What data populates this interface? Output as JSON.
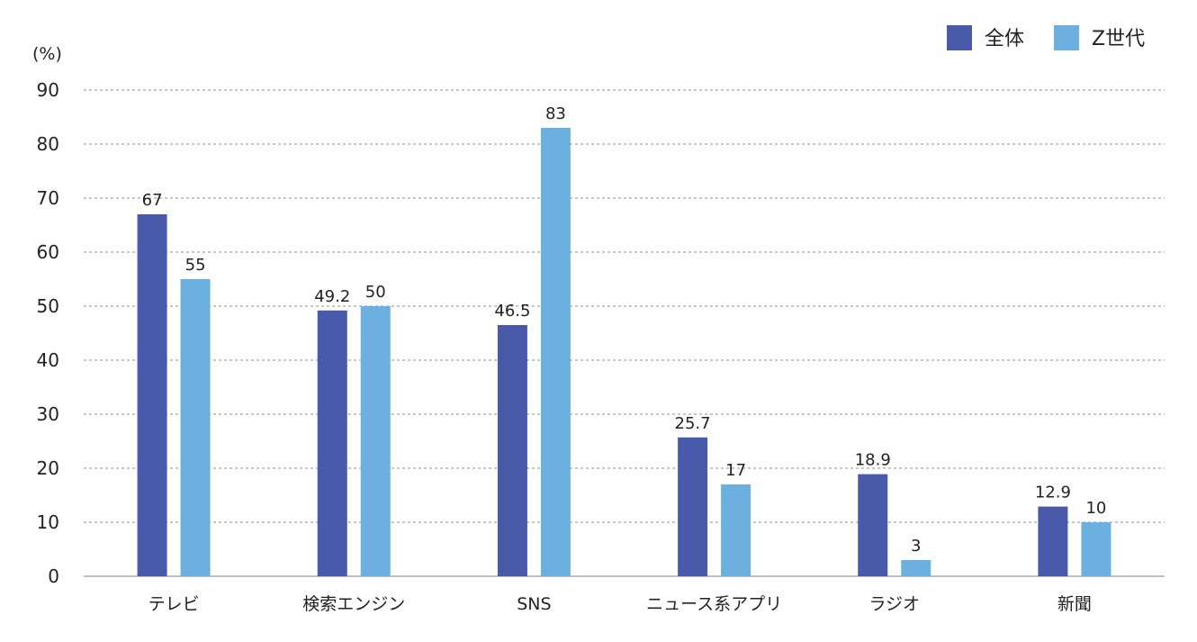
{
  "chart_data": {
    "type": "bar",
    "unit_label": "(%)",
    "categories": [
      "テレビ",
      "検索エンジン",
      "SNS",
      "ニュース系アプリ",
      "ラジオ",
      "新聞"
    ],
    "series": [
      {
        "name": "全体",
        "color": "#4a5aab",
        "values": [
          67,
          49.2,
          46.5,
          25.7,
          18.9,
          12.9
        ],
        "labels": [
          "67",
          "49.2",
          "46.5",
          "25.7",
          "18.9",
          "12.9"
        ]
      },
      {
        "name": "Z世代",
        "color": "#6cb0e0",
        "values": [
          55,
          50,
          83,
          17,
          3,
          10
        ],
        "labels": [
          "55",
          "50",
          "83",
          "17",
          "3",
          "10"
        ]
      }
    ],
    "ylim": [
      0,
      90
    ],
    "yticks": [
      "0",
      "10",
      "20",
      "30",
      "40",
      "50",
      "60",
      "70",
      "80",
      "90"
    ],
    "grid": true,
    "legend_position": "top-right"
  }
}
